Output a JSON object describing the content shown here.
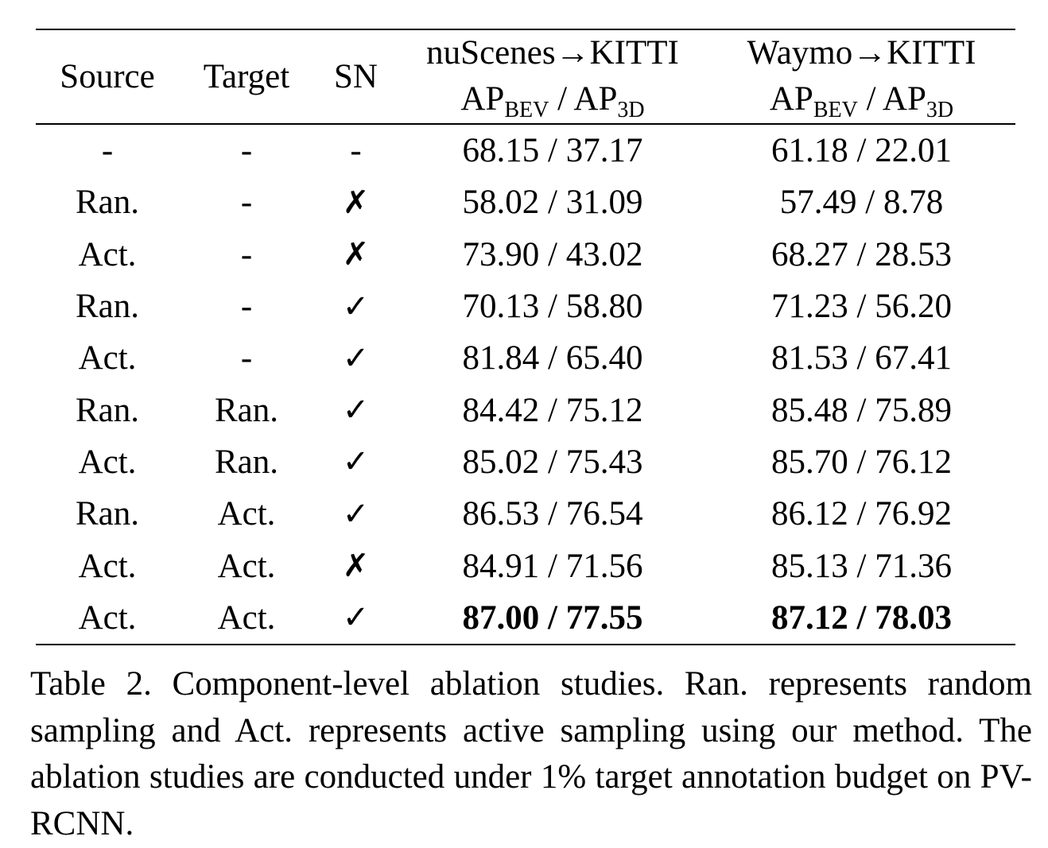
{
  "table": {
    "headers": {
      "source": "Source",
      "target": "Target",
      "sn": "SN",
      "nuscenes_title": "nuScenes→KITTI",
      "waymo_title": "Waymo→KITTI",
      "metric": {
        "ap": "AP",
        "bev_sub": "BEV",
        "sep": " / ",
        "three_d_sub": "3D"
      }
    },
    "rows": [
      {
        "source": "-",
        "target": "-",
        "sn": "-",
        "nuscenes": "68.15 / 37.17",
        "waymo": "61.18 / 22.01",
        "bold": false
      },
      {
        "source": "Ran.",
        "target": "-",
        "sn": "✗",
        "nuscenes": "58.02 / 31.09",
        "waymo": "57.49 / 8.78",
        "bold": false
      },
      {
        "source": "Act.",
        "target": "-",
        "sn": "✗",
        "nuscenes": "73.90 / 43.02",
        "waymo": "68.27 / 28.53",
        "bold": false
      },
      {
        "source": "Ran.",
        "target": "-",
        "sn": "✓",
        "nuscenes": "70.13 / 58.80",
        "waymo": "71.23 / 56.20",
        "bold": false
      },
      {
        "source": "Act.",
        "target": "-",
        "sn": "✓",
        "nuscenes": "81.84 / 65.40",
        "waymo": "81.53 / 67.41",
        "bold": false
      },
      {
        "source": "Ran.",
        "target": "Ran.",
        "sn": "✓",
        "nuscenes": "84.42 / 75.12",
        "waymo": "85.48 / 75.89",
        "bold": false
      },
      {
        "source": "Act.",
        "target": "Ran.",
        "sn": "✓",
        "nuscenes": "85.02 / 75.43",
        "waymo": "85.70 / 76.12",
        "bold": false
      },
      {
        "source": "Ran.",
        "target": "Act.",
        "sn": "✓",
        "nuscenes": "86.53 / 76.54",
        "waymo": "86.12 / 76.92",
        "bold": false
      },
      {
        "source": "Act.",
        "target": "Act.",
        "sn": "✗",
        "nuscenes": "84.91 / 71.56",
        "waymo": "85.13 / 71.36",
        "bold": false
      },
      {
        "source": "Act.",
        "target": "Act.",
        "sn": "✓",
        "nuscenes": "87.00 / 77.55",
        "waymo": "87.12 / 78.03",
        "bold": true
      }
    ]
  },
  "caption": "Table 2.  Component-level ablation studies.  Ran.  represents random sampling and Act.  represents active sampling using our method.  The ablation studies are conducted under 1% target annotation budget on PV-RCNN."
}
